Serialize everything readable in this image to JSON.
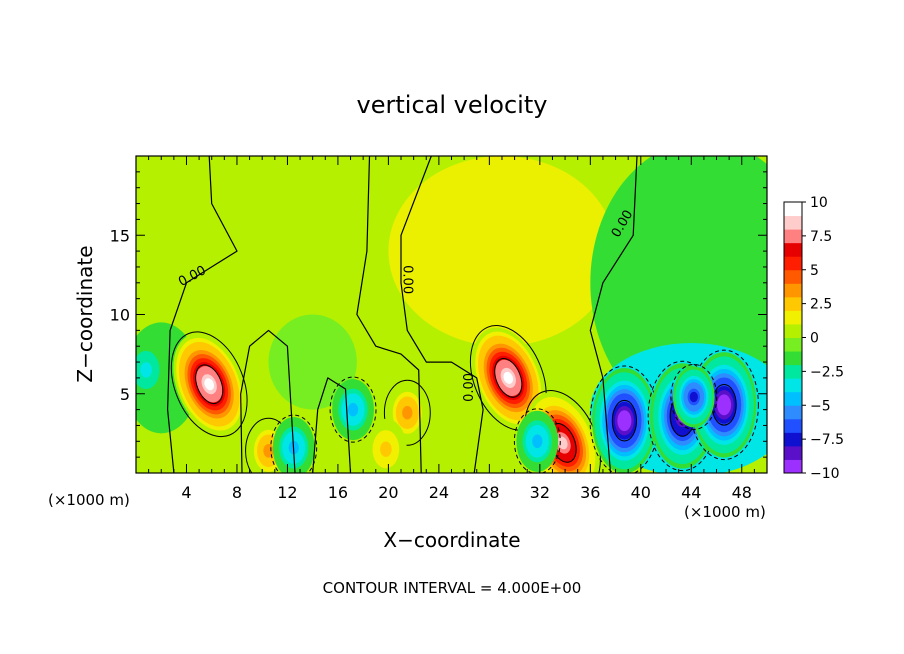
{
  "chart_data": {
    "type": "heatmap",
    "title": "vertical velocity",
    "xlabel": "X−coordinate",
    "ylabel": "Z−coordinate",
    "x_unit_left": "(×1000 m)",
    "x_unit_right": "(×1000 m)",
    "footer": "CONTOUR INTERVAL = 4.000E+00",
    "xlim": [
      0,
      50
    ],
    "ylim": [
      0,
      20
    ],
    "x_ticks": [
      4,
      8,
      12,
      16,
      20,
      24,
      28,
      32,
      36,
      40,
      44,
      48
    ],
    "x_tick_labels": [
      "4",
      "8",
      "12",
      "16",
      "20",
      "24",
      "28",
      "32",
      "36",
      "40",
      "44",
      "48"
    ],
    "y_ticks": [
      5,
      10,
      15
    ],
    "y_tick_labels": [
      "5",
      "10",
      "15"
    ],
    "colorbar": {
      "min": -10,
      "max": 10,
      "ticks": [
        10,
        7.5,
        5,
        2.5,
        0,
        -2.5,
        -5,
        -7.5,
        -10
      ],
      "tick_labels": [
        "10",
        "7.5",
        "5",
        "2.5",
        "0",
        "−2.5",
        "−5",
        "−7.5",
        "−10"
      ],
      "colors": [
        "#e6bbff",
        "#9b30ff",
        "#5a10c8",
        "#1010d0",
        "#2050ff",
        "#2f8cff",
        "#00bfff",
        "#00e6e6",
        "#00e8a0",
        "#33dd33",
        "#77ee22",
        "#b4f000",
        "#f0f000",
        "#ffc800",
        "#ff9600",
        "#ff5a00",
        "#ff1e00",
        "#e60000",
        "#ff8080",
        "#ffcccc",
        "#ffffff"
      ]
    },
    "contour_interval": 4,
    "contour_label": "0.00",
    "features": [
      {
        "x": 5.8,
        "z": 5.6,
        "w": 10
      },
      {
        "x": 29.5,
        "z": 6.0,
        "w": 10
      },
      {
        "x": 33.8,
        "z": 1.9,
        "w": 9
      },
      {
        "x": 21.5,
        "z": 3.8,
        "w": 4
      },
      {
        "x": 10.5,
        "z": 1.4,
        "w": 4
      },
      {
        "x": 19.8,
        "z": 1.5,
        "w": 2.5
      },
      {
        "x": 38.7,
        "z": 3.3,
        "w": -9.5
      },
      {
        "x": 43.3,
        "z": 3.6,
        "w": -9
      },
      {
        "x": 46.6,
        "z": 4.3,
        "w": -9.5
      },
      {
        "x": 44.2,
        "z": 4.8,
        "w": -7
      },
      {
        "x": 17.2,
        "z": 4.0,
        "w": -4
      },
      {
        "x": 31.8,
        "z": 2.0,
        "w": -4
      },
      {
        "x": 12.5,
        "z": 1.6,
        "w": -4
      },
      {
        "x": 0.8,
        "z": 6.5,
        "w": -3
      }
    ]
  }
}
